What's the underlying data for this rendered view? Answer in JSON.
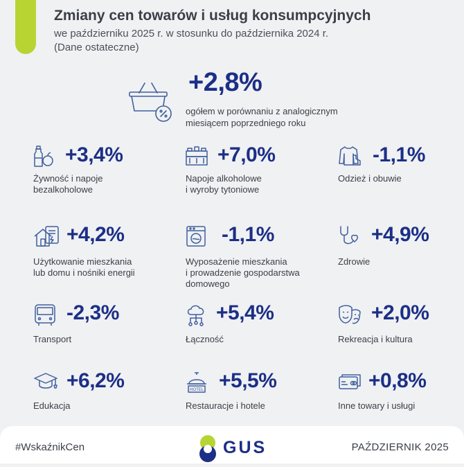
{
  "header": {
    "title": "Zmiany cen towarów i usług konsumpcyjnych",
    "subtitle_line1": "we październiku 2025 r. w stosunku do października 2024 r.",
    "subtitle_line2": "(Dane ostateczne)"
  },
  "overall": {
    "value": "+2,8%",
    "desc_line1": "ogółem w porównaniu z analogicznym",
    "desc_line2": "miesiącem poprzedniego roku",
    "icon": "shopping-basket-percent-icon"
  },
  "categories": [
    {
      "value": "+3,4%",
      "label1": "Żywność i napoje",
      "label2": "bezalkoholowe",
      "label3": "",
      "icon": "food-icon"
    },
    {
      "value": "+7,0%",
      "label1": "Napoje alkoholowe",
      "label2": "i wyroby tytoniowe",
      "label3": "",
      "icon": "bottles-icon"
    },
    {
      "value": "-1,1%",
      "label1": "Odzież i obuwie",
      "label2": "",
      "label3": "",
      "icon": "clothing-icon"
    },
    {
      "value": "+4,2%",
      "label1": "Użytkowanie mieszkania",
      "label2": "lub domu i nośniki energii",
      "label3": "",
      "icon": "house-energy-icon"
    },
    {
      "value": "-1,1%",
      "label1": "Wyposażenie mieszkania",
      "label2": "i prowadzenie gospodarstwa",
      "label3": "domowego",
      "icon": "washing-machine-icon"
    },
    {
      "value": "+4,9%",
      "label1": "Zdrowie",
      "label2": "",
      "label3": "",
      "icon": "stethoscope-icon"
    },
    {
      "value": "-2,3%",
      "label1": "Transport",
      "label2": "",
      "label3": "",
      "icon": "bus-icon"
    },
    {
      "value": "+5,4%",
      "label1": "Łączność",
      "label2": "",
      "label3": "",
      "icon": "cloud-connectivity-icon"
    },
    {
      "value": "+2,0%",
      "label1": "Rekreacja i kultura",
      "label2": "",
      "label3": "",
      "icon": "theatre-masks-icon"
    },
    {
      "value": "+6,2%",
      "label1": "Edukacja",
      "label2": "",
      "label3": "",
      "icon": "graduation-cap-icon"
    },
    {
      "value": "+5,5%",
      "label1": "Restauracje i hotele",
      "label2": "",
      "label3": "",
      "icon": "hotel-bell-icon"
    },
    {
      "value": "+0,8%",
      "label1": "Inne towary i usługi",
      "label2": "",
      "label3": "",
      "icon": "cards-icon"
    }
  ],
  "footer": {
    "hashtag": "#WskaźnikCen",
    "logo_text": "GUS",
    "date": "PAŹDZIERNIK 2025"
  },
  "colors": {
    "accent": "#b7d433",
    "value_blue": "#1c2f86",
    "icon_blue": "#3f5f9e",
    "text": "#3a3f47",
    "background": "#f0f1f3"
  }
}
